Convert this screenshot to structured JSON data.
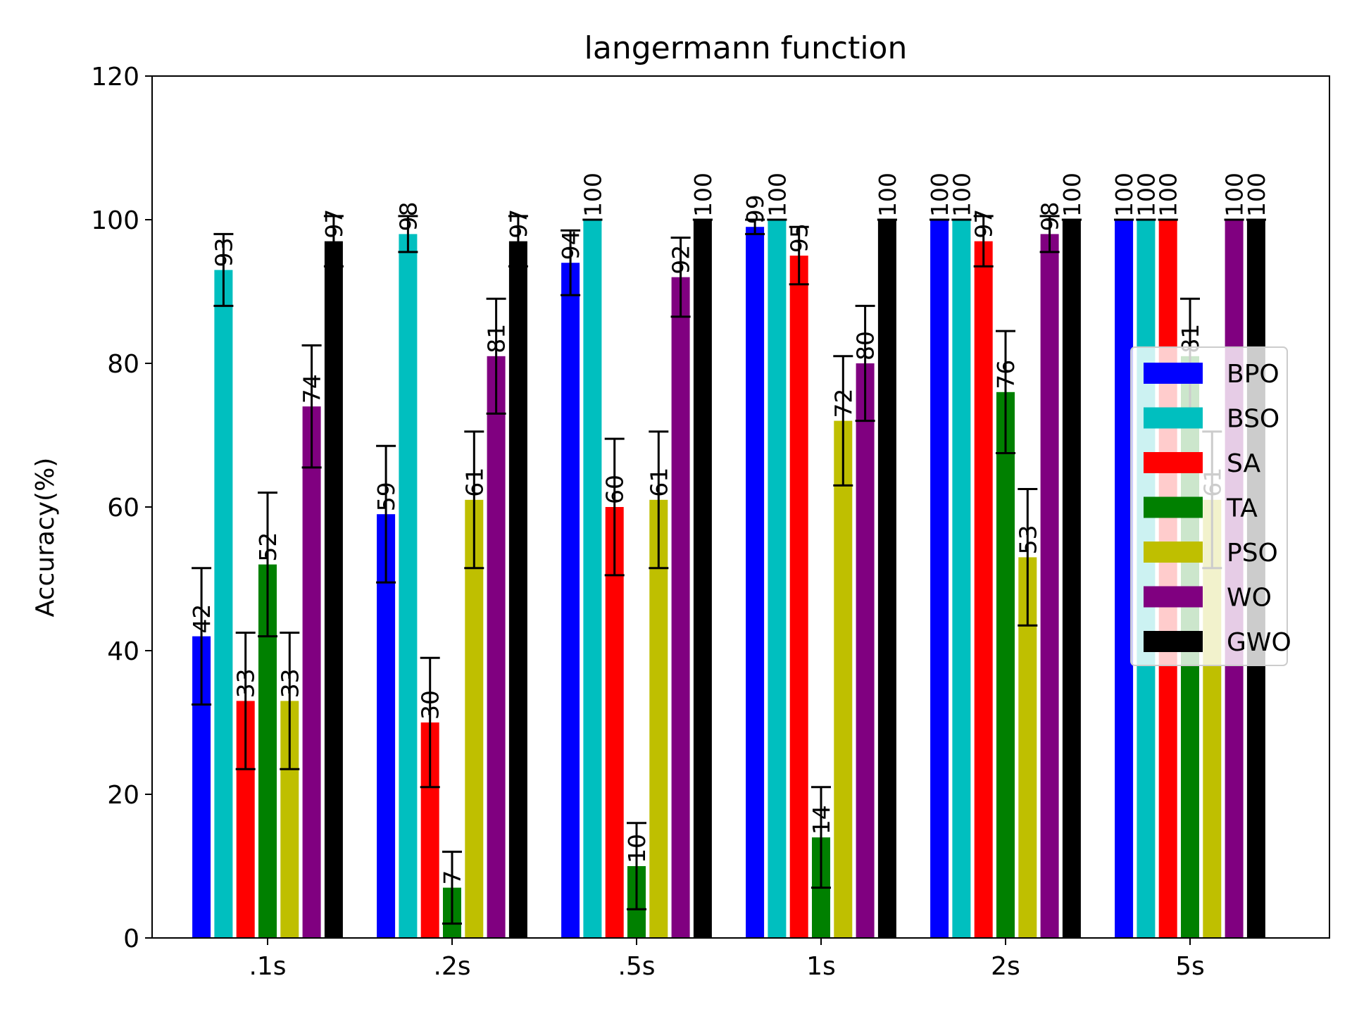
{
  "chart_data": {
    "type": "bar",
    "title": "langermann function",
    "xlabel": "",
    "ylabel": "Accuracy(%)",
    "ylim": [
      0,
      120
    ],
    "yticks": [
      "0",
      "20",
      "40",
      "60",
      "80",
      "100",
      "120"
    ],
    "categories": [
      ".1s",
      ".2s",
      ".5s",
      "1s",
      "2s",
      "5s"
    ],
    "grid": false,
    "legend_position": "center-right",
    "series": [
      {
        "name": "BPO",
        "color": "#0000ff",
        "values": [
          42,
          59,
          94,
          99,
          100,
          100
        ],
        "errors": [
          9.5,
          9.5,
          4.5,
          1,
          0,
          0
        ]
      },
      {
        "name": "BSO",
        "color": "#00bfbf",
        "values": [
          93,
          98,
          100,
          100,
          100,
          100
        ],
        "errors": [
          5,
          2.5,
          0,
          0,
          0,
          0
        ]
      },
      {
        "name": "SA",
        "color": "#ff0000",
        "values": [
          33,
          30,
          60,
          95,
          97,
          100
        ],
        "errors": [
          9.5,
          9,
          9.5,
          4,
          3.5,
          0
        ]
      },
      {
        "name": "TA",
        "color": "#008000",
        "values": [
          52,
          7,
          10,
          14,
          76,
          81
        ],
        "errors": [
          10,
          5,
          6,
          7,
          8.5,
          8
        ]
      },
      {
        "name": "PSO",
        "color": "#bfbf00",
        "values": [
          33,
          61,
          61,
          72,
          53,
          61
        ],
        "errors": [
          9.5,
          9.5,
          9.5,
          9,
          9.5,
          9.5
        ]
      },
      {
        "name": "WO",
        "color": "#800080",
        "values": [
          74,
          81,
          92,
          80,
          98,
          100
        ],
        "errors": [
          8.5,
          8,
          5.5,
          8,
          2.5,
          0
        ]
      },
      {
        "name": "GWO",
        "color": "#000000",
        "values": [
          97,
          97,
          100,
          100,
          100,
          100
        ],
        "errors": [
          3.5,
          3.5,
          0,
          0,
          0,
          0
        ]
      }
    ]
  }
}
